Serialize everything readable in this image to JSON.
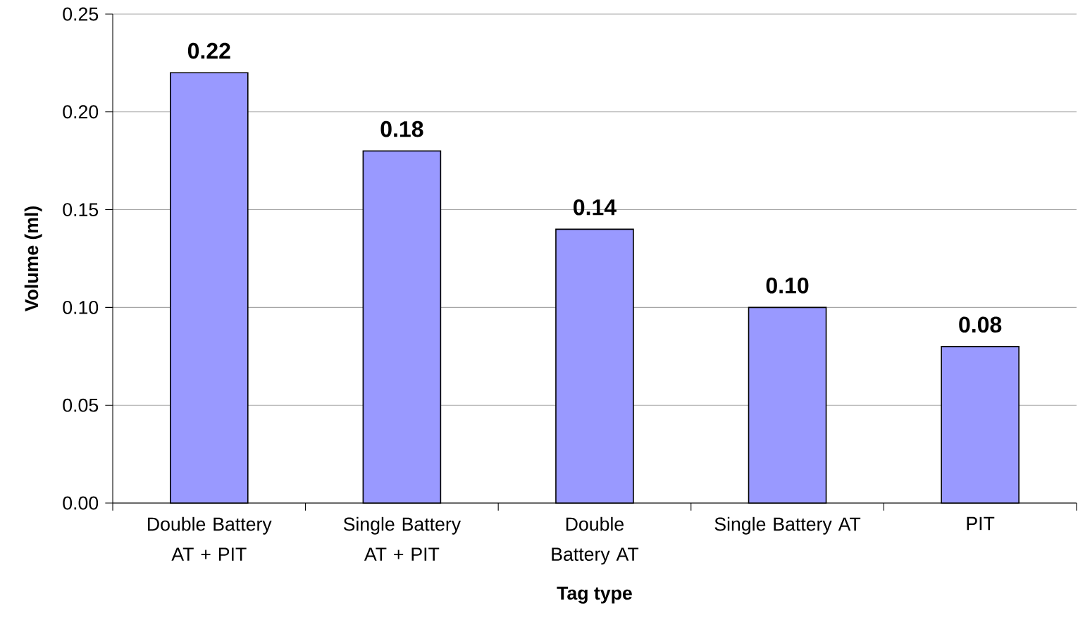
{
  "chart_data": {
    "type": "bar",
    "xlabel": "Tag type",
    "ylabel": "Volume (ml)",
    "categories": [
      "Double Battery AT + PIT",
      "Single Battery AT + PIT",
      "Double Battery AT",
      "Single Battery AT",
      "PIT"
    ],
    "values": [
      0.22,
      0.18,
      0.14,
      0.1,
      0.08
    ],
    "value_labels": [
      "0.22",
      "0.18",
      "0.14",
      "0.10",
      "0.08"
    ],
    "color": "#9999ff",
    "ylim": [
      0,
      0.25
    ],
    "yticks": [
      {
        "value": 0,
        "label": "0.00"
      },
      {
        "value": 0.05,
        "label": "0.05"
      },
      {
        "value": 0.1,
        "label": "0.10"
      },
      {
        "value": 0.15,
        "label": "0.15"
      },
      {
        "value": 0.2,
        "label": "0.20"
      },
      {
        "value": 0.25,
        "label": "0.25"
      }
    ],
    "grid": "y"
  }
}
